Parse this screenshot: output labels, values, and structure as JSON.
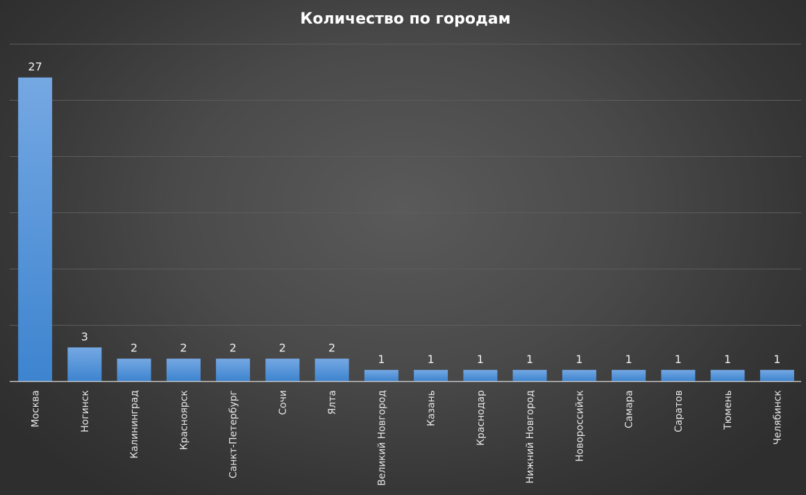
{
  "chart_data": {
    "type": "bar",
    "title": "Количество по городам",
    "categories": [
      "Москва",
      "Ногинск",
      "Калининград",
      "Красноярск",
      "Санкт-Петербург",
      "Сочи",
      "Ялта",
      "Великий Новгород",
      "Казань",
      "Краснодар",
      "Нижний Новгород",
      "Новороссийск",
      "Самара",
      "Саратов",
      "Тюмень",
      "Челябинск"
    ],
    "values": [
      27,
      3,
      2,
      2,
      2,
      2,
      2,
      1,
      1,
      1,
      1,
      1,
      1,
      1,
      1,
      1
    ],
    "ylim": [
      0,
      30
    ],
    "y_gridlines": [
      5,
      10,
      15,
      20,
      25,
      30
    ],
    "grid": true,
    "legend": "none",
    "data_labels": true,
    "y_tick_labels": false,
    "colors": {
      "bar_top": "#75a8e3",
      "bar_bottom": "#3d84cf",
      "background": "#4a4a4a",
      "title": "#ffffff",
      "text": "#e6e6e6",
      "gridline": "#5c5c5c",
      "axis": "#c9c9c9"
    }
  }
}
